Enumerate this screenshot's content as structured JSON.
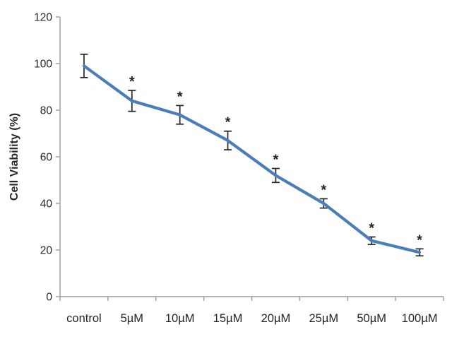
{
  "chart_data": {
    "type": "line",
    "title": "",
    "xlabel": "",
    "ylabel": "Cell Viability (%)",
    "categories": [
      "control",
      "5µM",
      "10µM",
      "15µM",
      "20µM",
      "25µM",
      "50µM",
      "100µM"
    ],
    "series": [
      {
        "name": "Cell Viability (%)",
        "values": [
          99,
          84,
          78,
          67,
          52,
          40,
          24,
          19
        ],
        "error_bars": [
          5,
          4.5,
          4,
          4,
          3,
          2,
          1.6,
          1.5
        ],
        "significance": [
          "",
          "*",
          "*",
          "*",
          "*",
          "*",
          "*",
          "*"
        ]
      }
    ],
    "ylim": [
      0,
      120
    ],
    "yticks": [
      0,
      20,
      40,
      60,
      80,
      100,
      120
    ],
    "grid": false,
    "legend": "none",
    "colors": {
      "line": "#4a7ebb",
      "error_bar": "#262626",
      "axis": "#9b9b9b",
      "text": "#262626",
      "background": "#ffffff"
    }
  }
}
